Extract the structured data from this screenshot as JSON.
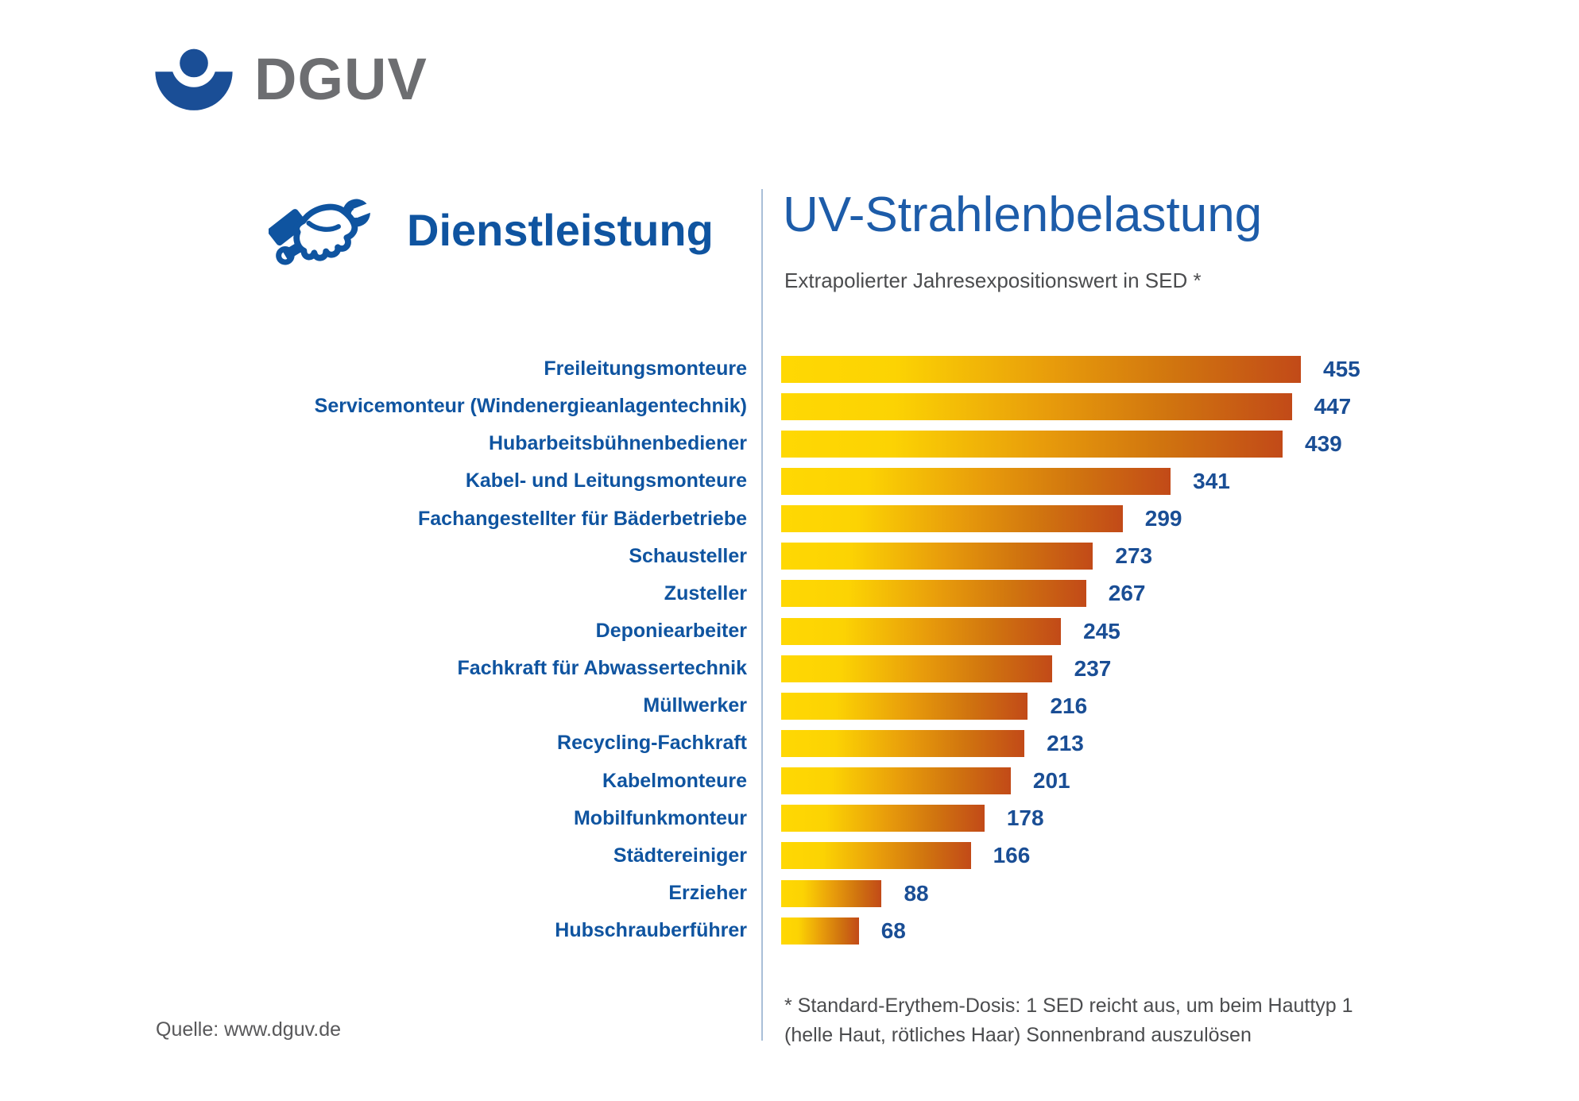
{
  "brand": {
    "name": "DGUV",
    "logo_color": "#1A4E96",
    "text_color": "#6D6E71"
  },
  "header": {
    "category_label": "Dienstleistung",
    "category_icon": "hand-wrench-icon",
    "title": "UV-Strahlenbelastung",
    "subtitle": "Extrapolierter Jahresexpositionswert in SED *"
  },
  "chart_data": {
    "type": "bar",
    "orientation": "horizontal",
    "title": "UV-Strahlenbelastung",
    "xlabel": "Extrapolierter Jahresexpositionswert in SED",
    "xlim": [
      0,
      455
    ],
    "grid": false,
    "legend": false,
    "bar_gradient": [
      "#FFD803",
      "#E89C0B",
      "#C24A18"
    ],
    "label_color": "#0F54A0",
    "value_color": "#1A4E95",
    "categories": [
      "Freileitungsmonteure",
      "Servicemonteur (Windenergieanlagentechnik)",
      "Hubarbeitsbühnenbediener",
      "Kabel- und Leitungsmonteure",
      "Fachangestellter für Bäderbetriebe",
      "Schausteller",
      "Zusteller",
      "Deponiearbeiter",
      "Fachkraft für Abwassertechnik",
      "Müllwerker",
      "Recycling-Fachkraft",
      "Kabelmonteure",
      "Mobilfunkmonteur",
      "Städtereiniger",
      "Erzieher",
      "Hubschrauberführer"
    ],
    "values": [
      455,
      447,
      439,
      341,
      299,
      273,
      267,
      245,
      237,
      216,
      213,
      201,
      178,
      166,
      88,
      68
    ]
  },
  "footnote": {
    "line1": "* Standard-Erythem-Dosis: 1 SED reicht aus, um beim Hauttyp 1",
    "line2": "(helle Haut, rötliches Haar) Sonnenbrand auszulösen"
  },
  "source": {
    "text": "Quelle: www.dguv.de"
  }
}
